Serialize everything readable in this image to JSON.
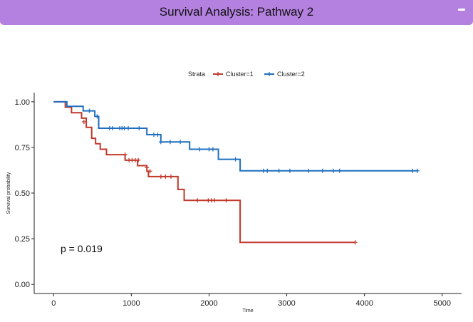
{
  "panel": {
    "title": "Survival Analysis: Pathway 2",
    "collapse_icon": "minus-icon",
    "header_color": "#b481e0"
  },
  "chart_data": {
    "type": "line",
    "step": true,
    "xlabel": "Time",
    "ylabel": "Survival probability",
    "xlim": [
      -250,
      5250
    ],
    "ylim": [
      -0.05,
      1.05
    ],
    "xticks": [
      0,
      1000,
      2000,
      3000,
      4000,
      5000
    ],
    "yticks": [
      0,
      0.25,
      0.5,
      0.75,
      1.0
    ],
    "xtick_labels": [
      "0",
      "1000",
      "2000",
      "3000",
      "4000",
      "5000"
    ],
    "ytick_labels": [
      "0.00",
      "0.25",
      "0.50",
      "0.75",
      "1.00"
    ],
    "grid": false,
    "legend": {
      "position": "top",
      "title": "Strata",
      "entries": [
        "Cluster=1",
        "Cluster=2"
      ]
    },
    "annotation": "p = 0.019",
    "series": [
      {
        "name": "Cluster=1",
        "color": "#c0392b",
        "steps": [
          [
            0,
            1.0
          ],
          [
            150,
            0.97
          ],
          [
            230,
            0.94
          ],
          [
            360,
            0.91
          ],
          [
            420,
            0.86
          ],
          [
            490,
            0.8
          ],
          [
            540,
            0.77
          ],
          [
            600,
            0.74
          ],
          [
            680,
            0.71
          ],
          [
            920,
            0.68
          ],
          [
            1080,
            0.65
          ],
          [
            1200,
            0.62
          ],
          [
            1220,
            0.59
          ],
          [
            1600,
            0.52
          ],
          [
            1680,
            0.46
          ],
          [
            2400,
            0.23
          ],
          [
            3880,
            0.23
          ]
        ],
        "censored": [
          [
            390,
            0.89
          ],
          [
            920,
            0.71
          ],
          [
            970,
            0.68
          ],
          [
            1010,
            0.68
          ],
          [
            1050,
            0.68
          ],
          [
            1090,
            0.68
          ],
          [
            1200,
            0.64
          ],
          [
            1240,
            0.62
          ],
          [
            1380,
            0.59
          ],
          [
            1440,
            0.59
          ],
          [
            1510,
            0.59
          ],
          [
            1850,
            0.46
          ],
          [
            1990,
            0.46
          ],
          [
            2030,
            0.46
          ],
          [
            2070,
            0.46
          ],
          [
            2220,
            0.46
          ],
          [
            3880,
            0.23
          ]
        ]
      },
      {
        "name": "Cluster=2",
        "color": "#1f6fbf",
        "steps": [
          [
            0,
            1.0
          ],
          [
            170,
            0.975
          ],
          [
            380,
            0.95
          ],
          [
            530,
            0.92
          ],
          [
            580,
            0.855
          ],
          [
            1200,
            0.82
          ],
          [
            1380,
            0.78
          ],
          [
            1750,
            0.74
          ],
          [
            2120,
            0.685
          ],
          [
            2400,
            0.622
          ],
          [
            4680,
            0.622
          ]
        ],
        "censored": [
          [
            460,
            0.95
          ],
          [
            560,
            0.92
          ],
          [
            720,
            0.855
          ],
          [
            760,
            0.855
          ],
          [
            850,
            0.855
          ],
          [
            880,
            0.855
          ],
          [
            910,
            0.855
          ],
          [
            960,
            0.855
          ],
          [
            1100,
            0.855
          ],
          [
            1290,
            0.82
          ],
          [
            1340,
            0.82
          ],
          [
            1380,
            0.78
          ],
          [
            1500,
            0.78
          ],
          [
            1630,
            0.78
          ],
          [
            1880,
            0.74
          ],
          [
            2000,
            0.74
          ],
          [
            2050,
            0.74
          ],
          [
            2340,
            0.685
          ],
          [
            2700,
            0.622
          ],
          [
            2750,
            0.622
          ],
          [
            2900,
            0.622
          ],
          [
            3040,
            0.622
          ],
          [
            3280,
            0.622
          ],
          [
            3460,
            0.622
          ],
          [
            3600,
            0.622
          ],
          [
            3680,
            0.622
          ],
          [
            4620,
            0.622
          ],
          [
            4680,
            0.622
          ]
        ]
      }
    ]
  }
}
